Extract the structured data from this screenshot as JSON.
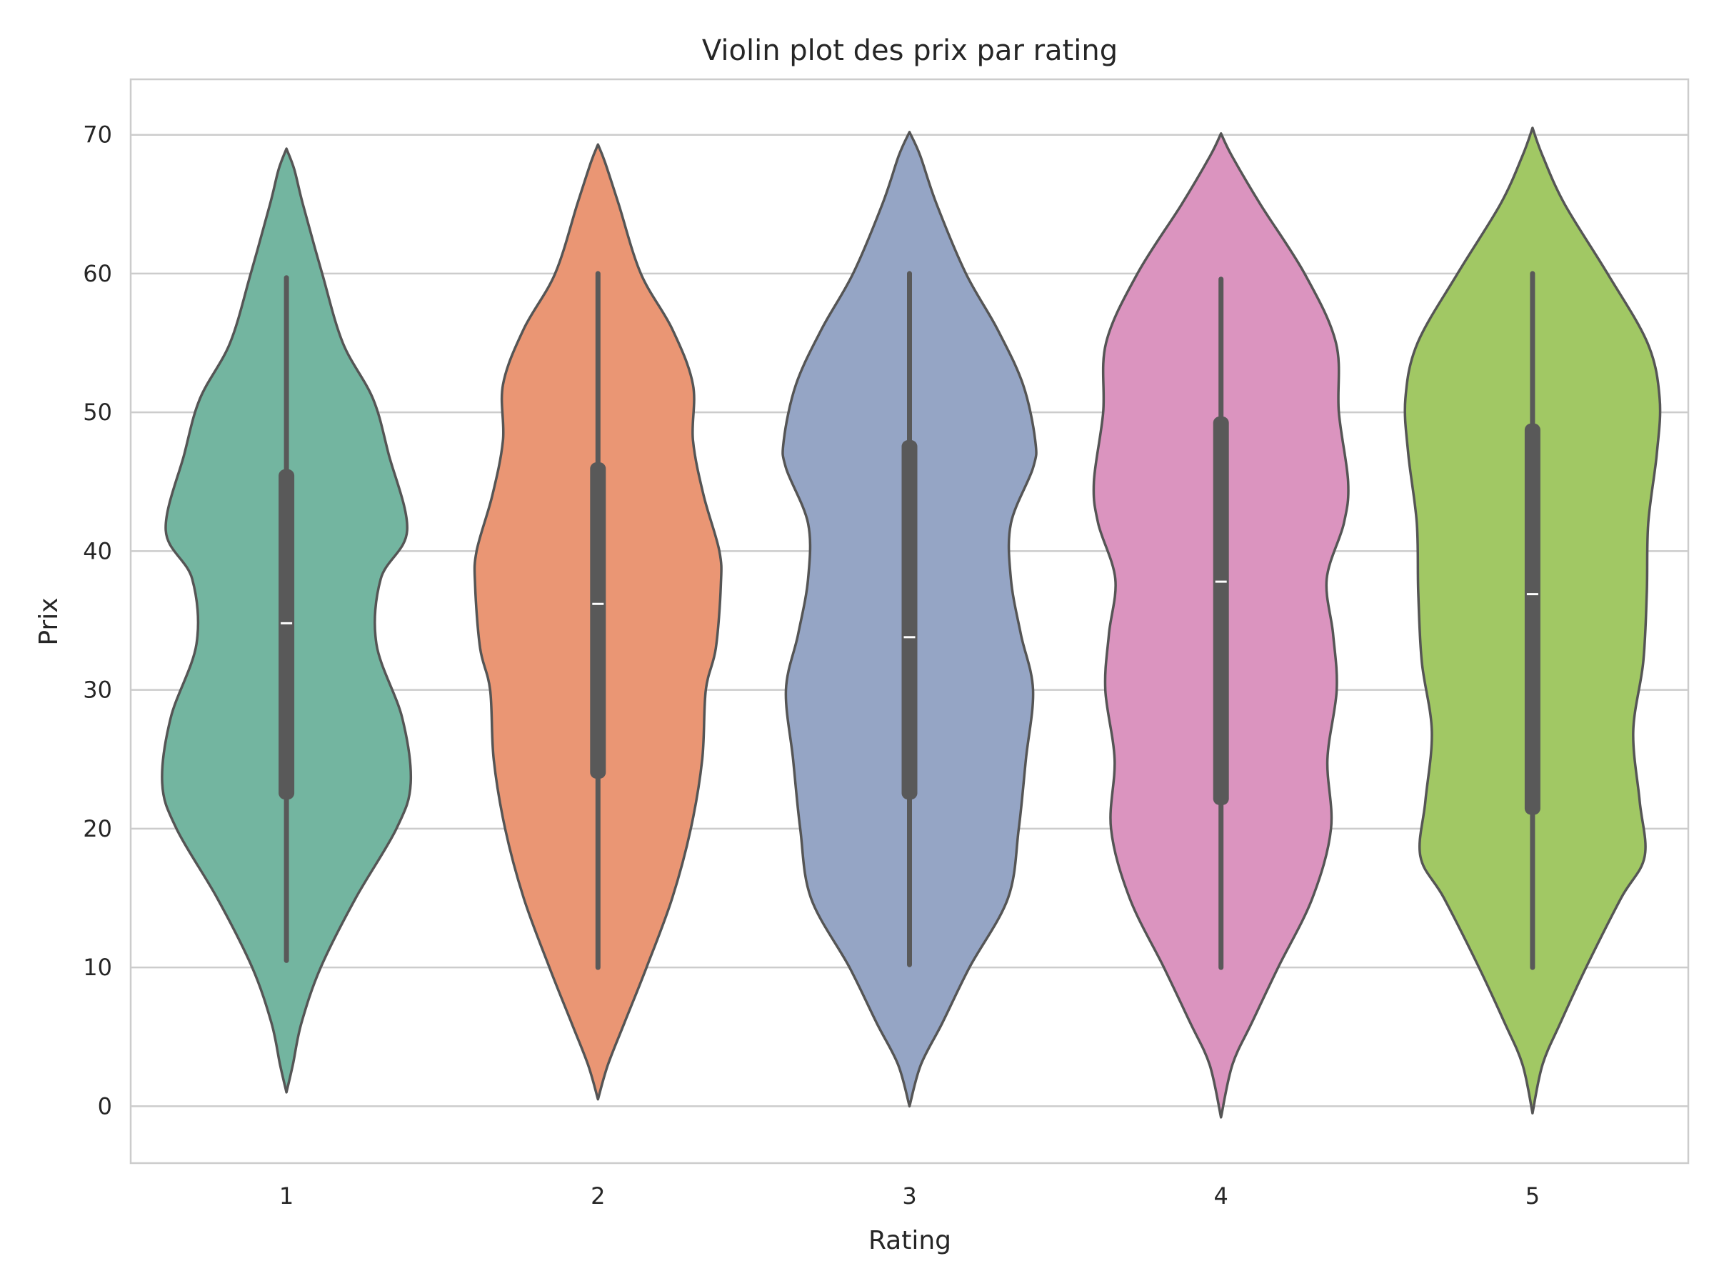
{
  "chart_data": {
    "type": "violin",
    "title": "Violin plot des prix par rating",
    "xlabel": "Rating",
    "ylabel": "Prix",
    "categories": [
      "1",
      "2",
      "3",
      "4",
      "5"
    ],
    "ylim": [
      -4.1,
      74.0
    ],
    "yticks": [
      0,
      10,
      20,
      30,
      40,
      50,
      60,
      70
    ],
    "grid": true,
    "edge_color": "#555555",
    "colors": [
      "#73b5a0",
      "#ea9674",
      "#95a5c5",
      "#db94bf",
      "#a1c864"
    ],
    "violins": [
      {
        "category": "1",
        "ymin": 1.0,
        "ymax": 69.0,
        "whisker": [
          10.5,
          59.7
        ],
        "q1": 22.1,
        "q3": 45.9,
        "median": 34.8,
        "profile": [
          [
            1.0,
            0
          ],
          [
            3.0,
            9
          ],
          [
            6.0,
            21
          ],
          [
            10.0,
            48
          ],
          [
            15.0,
            97
          ],
          [
            20.0,
            154
          ],
          [
            23.3,
            174
          ],
          [
            28.0,
            162
          ],
          [
            33.3,
            126
          ],
          [
            38.0,
            132
          ],
          [
            41.5,
            169
          ],
          [
            47.0,
            143
          ],
          [
            51.0,
            121
          ],
          [
            55.0,
            79
          ],
          [
            60.0,
            50
          ],
          [
            65.0,
            23
          ],
          [
            67.5,
            11
          ],
          [
            69.0,
            0
          ]
        ]
      },
      {
        "category": "2",
        "ymin": 0.5,
        "ymax": 69.3,
        "whisker": [
          10.0,
          60.0
        ],
        "q1": 23.6,
        "q3": 46.4,
        "median": 36.2,
        "profile": [
          [
            0.5,
            0
          ],
          [
            3.0,
            14
          ],
          [
            6.0,
            37
          ],
          [
            10.0,
            68
          ],
          [
            15.0,
            104
          ],
          [
            20.0,
            130
          ],
          [
            25.0,
            146
          ],
          [
            30.0,
            151
          ],
          [
            33.0,
            165
          ],
          [
            37.5,
            172
          ],
          [
            40.0,
            170
          ],
          [
            44.0,
            148
          ],
          [
            48.0,
            133
          ],
          [
            52.0,
            133
          ],
          [
            56.0,
            104
          ],
          [
            60.0,
            60
          ],
          [
            65.0,
            29
          ],
          [
            68.0,
            10
          ],
          [
            69.3,
            0
          ]
        ]
      },
      {
        "category": "3",
        "ymin": 0.0,
        "ymax": 70.2,
        "whisker": [
          10.2,
          60.0
        ],
        "q1": 22.1,
        "q3": 48.0,
        "median": 33.8,
        "profile": [
          [
            0.0,
            0
          ],
          [
            3.0,
            16
          ],
          [
            6.0,
            46
          ],
          [
            10.0,
            84
          ],
          [
            15.0,
            138
          ],
          [
            20.0,
            153
          ],
          [
            25.0,
            163
          ],
          [
            30.0,
            173
          ],
          [
            34.0,
            156
          ],
          [
            38.0,
            142
          ],
          [
            42.0,
            142
          ],
          [
            46.0,
            173
          ],
          [
            48.0,
            176
          ],
          [
            52.0,
            159
          ],
          [
            56.0,
            123
          ],
          [
            60.0,
            79
          ],
          [
            65.0,
            38
          ],
          [
            68.5,
            15
          ],
          [
            70.2,
            0
          ]
        ]
      },
      {
        "category": "4",
        "ymin": -0.8,
        "ymax": 70.1,
        "whisker": [
          10.0,
          59.6
        ],
        "q1": 21.7,
        "q3": 49.7,
        "median": 37.8,
        "profile": [
          [
            -0.8,
            0
          ],
          [
            3.0,
            16
          ],
          [
            6.0,
            43
          ],
          [
            10.0,
            80
          ],
          [
            15.0,
            128
          ],
          [
            20.0,
            154
          ],
          [
            25.0,
            149
          ],
          [
            30.0,
            162
          ],
          [
            34.0,
            157
          ],
          [
            38.0,
            148
          ],
          [
            42.0,
            172
          ],
          [
            45.0,
            178
          ],
          [
            50.0,
            165
          ],
          [
            55.0,
            161
          ],
          [
            60.0,
            117
          ],
          [
            65.0,
            55
          ],
          [
            68.5,
            15
          ],
          [
            70.1,
            0
          ]
        ]
      },
      {
        "category": "5",
        "ymin": -0.5,
        "ymax": 70.5,
        "whisker": [
          10.0,
          60.0
        ],
        "q1": 21.0,
        "q3": 49.2,
        "median": 36.9,
        "profile": [
          [
            -0.5,
            0
          ],
          [
            3.0,
            14
          ],
          [
            6.0,
            39
          ],
          [
            10.0,
            75
          ],
          [
            15.0,
            124
          ],
          [
            18.0,
            157
          ],
          [
            22.0,
            150
          ],
          [
            27.0,
            141
          ],
          [
            32.0,
            155
          ],
          [
            37.0,
            160
          ],
          [
            42.0,
            162
          ],
          [
            47.0,
            174
          ],
          [
            51.0,
            178
          ],
          [
            55.0,
            161
          ],
          [
            60.0,
            105
          ],
          [
            65.0,
            45
          ],
          [
            68.5,
            14
          ],
          [
            70.5,
            0
          ]
        ]
      }
    ]
  }
}
